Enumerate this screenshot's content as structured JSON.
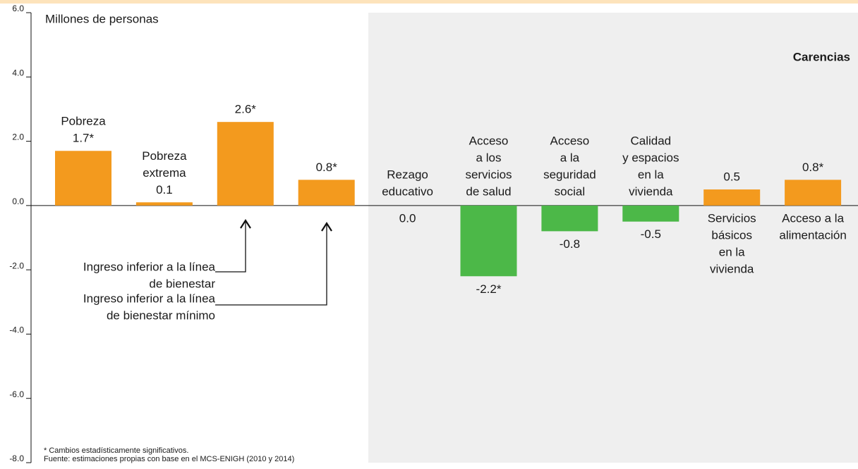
{
  "chart_data": {
    "type": "bar",
    "y_label": "Millones de personas",
    "group_label": "Carencias",
    "categories": [
      [
        "Pobreza"
      ],
      [
        "Pobreza",
        "extrema"
      ],
      [
        "Ingreso inferior a la línea",
        "de bienestar"
      ],
      [
        "Ingreso inferior a la línea",
        "de bienestar mínimo"
      ],
      [
        "Rezago",
        "educativo"
      ],
      [
        "Acceso",
        "a los",
        "servicios",
        "de salud"
      ],
      [
        "Acceso",
        "a la",
        "seguridad",
        "social"
      ],
      [
        "Calidad",
        "y espacios",
        "en la",
        "vivienda"
      ],
      [
        "Servicios",
        "básicos",
        "en la",
        "vivienda"
      ],
      [
        "Acceso a la",
        "alimentación"
      ]
    ],
    "values": [
      1.7,
      0.1,
      2.6,
      0.8,
      0.0,
      -2.2,
      -0.8,
      -0.5,
      0.5,
      0.8
    ],
    "value_labels": [
      "1.7*",
      "0.1",
      "2.6*",
      "0.8*",
      "0.0",
      "-2.2*",
      "-0.8",
      "-0.5",
      "0.5",
      "0.8*"
    ],
    "colors": [
      "#f39a1e",
      "#f39a1e",
      "#f39a1e",
      "#f39a1e",
      "#f39a1e",
      "#4cb848",
      "#4cb848",
      "#4cb848",
      "#f39a1e",
      "#f39a1e"
    ],
    "ylim": [
      -8,
      6
    ],
    "yticks": [
      {
        "value": -8,
        "label": "-8.0"
      },
      {
        "value": -6,
        "label": "-6.0"
      },
      {
        "value": -4,
        "label": "-4.0"
      },
      {
        "value": -2,
        "label": "-2.0"
      },
      {
        "value": 0,
        "label": "0.0"
      },
      {
        "value": 2,
        "label": "2.0"
      },
      {
        "value": 4,
        "label": "4.0"
      },
      {
        "value": 6,
        "label": "6.0"
      }
    ],
    "notes": [
      "* Cambios estadísticamente significativos.",
      "Fuente: estimaciones propias con base en el MCS-ENIGH (2010 y 2014)"
    ]
  }
}
